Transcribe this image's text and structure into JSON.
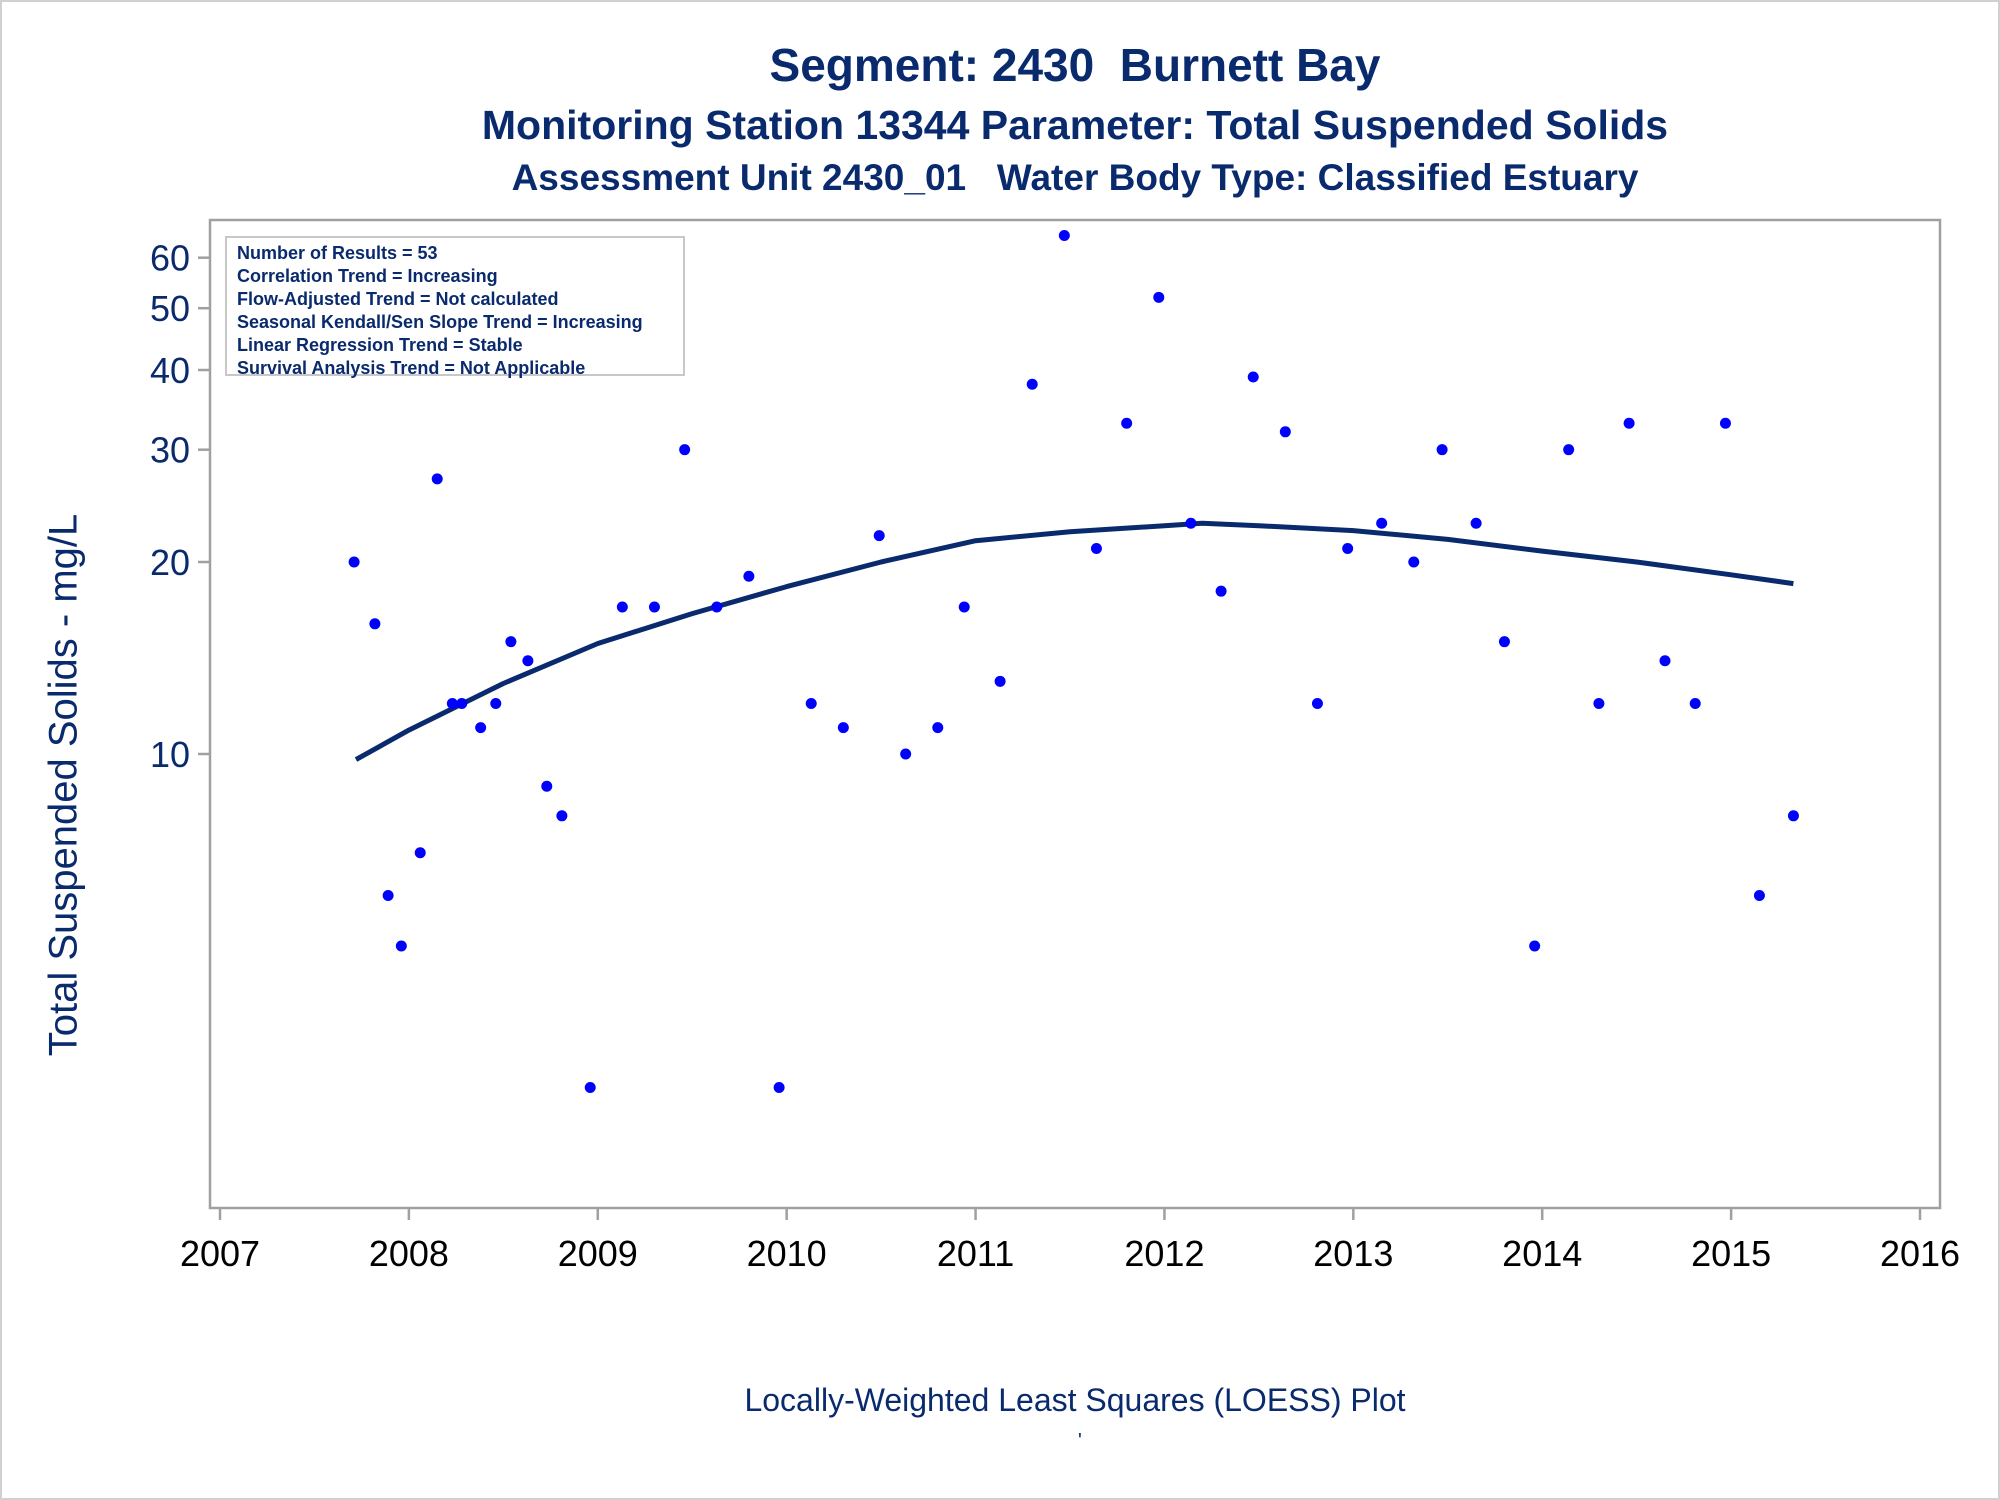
{
  "titles": {
    "line1": "Segment: 2430  Burnett Bay",
    "line2": "Monitoring Station 13344 Parameter: Total Suspended Solids",
    "line3": "Assessment Unit 2430_01   Water Body Type: Classified Estuary"
  },
  "footer": "Locally-Weighted Least Squares (LOESS) Plot",
  "footer_mark": "'",
  "legend": [
    "Number of Results = 53",
    "Correlation Trend = Increasing",
    "Flow-Adjusted Trend = Not calculated",
    "Seasonal Kendall/Sen Slope Trend = Increasing",
    "Linear Regression Trend = Stable",
    "Survival Analysis Trend = Not Applicable"
  ],
  "colors": {
    "text": "#0a2a6e",
    "points": "#0000ff",
    "loess": "#0a2a6e",
    "axis": "#a0a0a0"
  },
  "chart_data": {
    "type": "scatter",
    "title": "Segment: 2430  Burnett Bay",
    "xlabel": "",
    "ylabel": "Total Suspended Solids - mg/L",
    "y_scale": "log",
    "xlim": [
      2007,
      2016
    ],
    "ylim": [
      3,
      70
    ],
    "x_ticks": [
      "2007",
      "2008",
      "2009",
      "2010",
      "2011",
      "2012",
      "2013",
      "2014",
      "2015",
      "2016"
    ],
    "y_ticks": [
      10,
      20,
      30,
      40,
      50,
      60
    ],
    "grid": false,
    "series": [
      {
        "points": [
          [
            2007.71,
            20
          ],
          [
            2007.82,
            16
          ],
          [
            2007.89,
            6
          ],
          [
            2007.96,
            5
          ],
          [
            2008.06,
            7
          ],
          [
            2008.15,
            27
          ],
          [
            2008.23,
            12
          ],
          [
            2008.28,
            12
          ],
          [
            2008.38,
            11
          ],
          [
            2008.46,
            12
          ],
          [
            2008.54,
            15
          ],
          [
            2008.63,
            14
          ],
          [
            2008.73,
            8.9
          ],
          [
            2008.81,
            8
          ],
          [
            2008.96,
            3
          ],
          [
            2009.13,
            17
          ],
          [
            2009.3,
            17
          ],
          [
            2009.46,
            30
          ],
          [
            2009.63,
            17
          ],
          [
            2009.8,
            19
          ],
          [
            2009.96,
            3
          ],
          [
            2010.13,
            12
          ],
          [
            2010.3,
            11
          ],
          [
            2010.49,
            22
          ],
          [
            2010.63,
            10
          ],
          [
            2010.8,
            11
          ],
          [
            2010.94,
            17
          ],
          [
            2011.13,
            13
          ],
          [
            2011.3,
            38
          ],
          [
            2011.47,
            65
          ],
          [
            2011.64,
            21
          ],
          [
            2011.8,
            33
          ],
          [
            2011.97,
            52
          ],
          [
            2012.14,
            23
          ],
          [
            2012.3,
            18
          ],
          [
            2012.47,
            39
          ],
          [
            2012.64,
            32
          ],
          [
            2012.81,
            12
          ],
          [
            2012.97,
            21
          ],
          [
            2013.15,
            23
          ],
          [
            2013.32,
            20
          ],
          [
            2013.47,
            30
          ],
          [
            2013.65,
            23
          ],
          [
            2013.8,
            15
          ],
          [
            2013.96,
            5
          ],
          [
            2014.14,
            30
          ],
          [
            2014.3,
            12
          ],
          [
            2014.46,
            33
          ],
          [
            2014.65,
            14
          ],
          [
            2014.81,
            12
          ],
          [
            2014.97,
            33
          ],
          [
            2015.15,
            6
          ],
          [
            2015.33,
            8
          ]
        ]
      },
      {
        "type": "line",
        "points": [
          [
            2007.72,
            9.8
          ],
          [
            2008.0,
            10.9
          ],
          [
            2008.5,
            12.9
          ],
          [
            2009.0,
            14.9
          ],
          [
            2009.5,
            16.6
          ],
          [
            2010.0,
            18.3
          ],
          [
            2010.5,
            20.0
          ],
          [
            2011.0,
            21.6
          ],
          [
            2011.5,
            22.3
          ],
          [
            2012.0,
            22.8
          ],
          [
            2012.2,
            23.0
          ],
          [
            2012.5,
            22.8
          ],
          [
            2013.0,
            22.4
          ],
          [
            2013.5,
            21.7
          ],
          [
            2014.0,
            20.8
          ],
          [
            2014.5,
            20.0
          ],
          [
            2015.0,
            19.1
          ],
          [
            2015.33,
            18.5
          ]
        ]
      }
    ]
  }
}
